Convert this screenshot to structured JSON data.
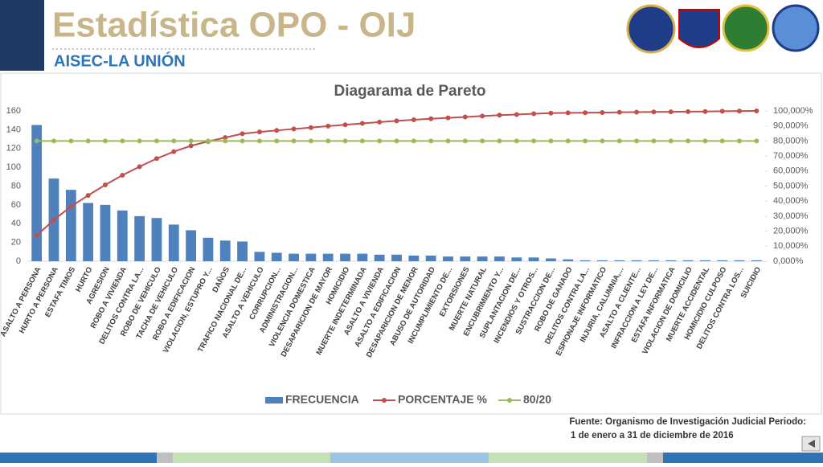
{
  "header": {
    "title": "Estadística OPO - OIJ",
    "subtitle": "AISEC-LA UNIÓN"
  },
  "footer": {
    "source_line1": "Fuente: Organismo de Investigación Judicial Periodo:",
    "source_line2": "1 de enero a 31 de diciembre de 2016"
  },
  "chart_data": {
    "type": "pareto",
    "title": "Diagarama de Pareto",
    "categories": [
      "ASALTO A PERSONA",
      "HURTO A PERSONA",
      "ESTAFA TIMOS",
      "HURTO",
      "AGRESION",
      "ROBO A VIVIENDA",
      "DELITOS CONTRA LA...",
      "ROBO DE VEHICULO",
      "TACHA DE VEHICULO",
      "ROBO A EDIFICACION",
      "VIOLACION, ESTUPRO Y...",
      "DAÑOS",
      "TRAFICO NACIONAL DE...",
      "ASALTO A VEHICULO",
      "CORRUPCION...",
      "ADMINISTRACION...",
      "VIOLENCIA DOMESTICA",
      "DESAPARICION DE MAYOR",
      "HOMICIDIO",
      "MUERTE INDETERMINADA",
      "ASALTO A VIVIENDA",
      "ASALTO A EDIFICACION",
      "DESAPARICION DE MENOR",
      "ABUSO DE AUTORIDAD",
      "INCUMPLIMIENTO DE...",
      "EXTORSIONES",
      "MUERTE NATURAL",
      "ENCUBRIMIENTO Y...",
      "SUPLANTACION DE...",
      "INCENDIOS Y OTROS...",
      "SUSTRACCION DE...",
      "ROBO DE GANADO",
      "DELITOS CONTRA LA...",
      "ESPIONAJE INFORMATICO",
      "INJURIA, CALUMNIA,...",
      "ASALTO A CLIENTE...",
      "INFRACCION A LEY DE...",
      "ESTAFA INFORMATICA",
      "VIOLACION DE DOMICILIO",
      "MUERTE ACCIDENTAL",
      "HOMICIDIO CULPOSO",
      "DELITOS CONTRA LOS...",
      "SUICIDIO"
    ],
    "series": [
      {
        "name": "FRECUENCIA",
        "color": "#4f81bd",
        "kind": "bar",
        "values": [
          145,
          88,
          76,
          62,
          60,
          54,
          48,
          46,
          39,
          33,
          25,
          22,
          21,
          10,
          9,
          8,
          8,
          8,
          8,
          8,
          7,
          7,
          6,
          6,
          5,
          5,
          5,
          5,
          4,
          4,
          3,
          2,
          1,
          1,
          1,
          1,
          1,
          1,
          1,
          1,
          1,
          1,
          1
        ]
      },
      {
        "name": "PORCENTAJE %",
        "color": "#c0504d",
        "kind": "line",
        "axis": "y2",
        "values": [
          17.1,
          27.5,
          36.4,
          43.8,
          50.8,
          57.2,
          62.9,
          68.3,
          72.9,
          76.8,
          79.7,
          82.3,
          84.8,
          86.0,
          87.0,
          88.0,
          88.9,
          89.9,
          90.8,
          91.7,
          92.6,
          93.4,
          94.1,
          94.8,
          95.4,
          96.0,
          96.6,
          97.2,
          97.6,
          98.1,
          98.5,
          98.7,
          98.8,
          98.9,
          99.1,
          99.2,
          99.3,
          99.4,
          99.5,
          99.6,
          99.8,
          99.9,
          100
        ]
      },
      {
        "name": "80/20",
        "color": "#9bbb59",
        "kind": "line",
        "axis": "y2",
        "values": [
          80,
          80,
          80,
          80,
          80,
          80,
          80,
          80,
          80,
          80,
          80,
          80,
          80,
          80,
          80,
          80,
          80,
          80,
          80,
          80,
          80,
          80,
          80,
          80,
          80,
          80,
          80,
          80,
          80,
          80,
          80,
          80,
          80,
          80,
          80,
          80,
          80,
          80,
          80,
          80,
          80,
          80,
          80
        ]
      }
    ],
    "ylim": [
      0,
      160
    ],
    "yticks": [
      0,
      20,
      40,
      60,
      80,
      100,
      120,
      140,
      160
    ],
    "y2lim": [
      0,
      100
    ],
    "y2ticks": [
      {
        "value": 0,
        "label": "0,000%"
      },
      {
        "value": 10,
        "label": "10,000%"
      },
      {
        "value": 20,
        "label": "20,000%"
      },
      {
        "value": 30,
        "label": "30,000%"
      },
      {
        "value": 40,
        "label": "40,000%"
      },
      {
        "value": 50,
        "label": "50,000%"
      },
      {
        "value": 60,
        "label": "60,000%"
      },
      {
        "value": 70,
        "label": "70,000%"
      },
      {
        "value": 80,
        "label": "80,000%"
      },
      {
        "value": 90,
        "label": "90,000%"
      },
      {
        "value": 100,
        "label": "100,000%"
      }
    ],
    "legend": "bottom"
  }
}
